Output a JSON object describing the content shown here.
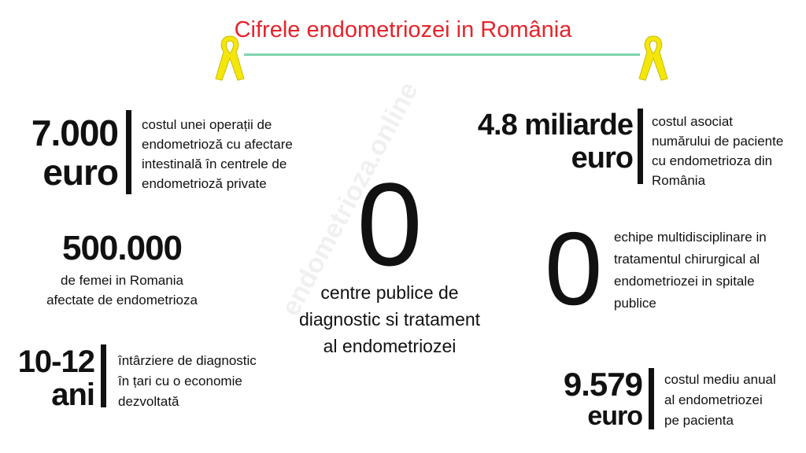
{
  "header": {
    "title": "Cifrele endometriozei in România",
    "accent_line_color": "#7fd3ad",
    "ribbon_icon": "awareness-ribbon-icon",
    "ribbon_color": "#f5e60a"
  },
  "stats": {
    "operation_cost": {
      "value_line1": "7.000",
      "value_line2": "euro",
      "description": [
        "costul unei operații de",
        "endometrioză cu afectare",
        "intestinală în centrele de",
        "endometrioză private"
      ]
    },
    "national_cost": {
      "value_line1": "4.8 miliarde",
      "value_line2": "euro",
      "description": [
        "costul asociat",
        "numărului de paciente",
        "cu endometrioza din",
        "România"
      ]
    },
    "women_affected": {
      "value": "500.000",
      "description": [
        "de femei in Romania",
        "afectate de endometrioza"
      ]
    },
    "public_centers": {
      "value": "0",
      "description": [
        "centre publice de",
        "diagnostic si tratament",
        "al endometriozei"
      ]
    },
    "teams": {
      "value": "0",
      "description": [
        "echipe multidisciplinare in",
        "tratamentul chirurgical al",
        "endometriozei in spitale",
        "publice"
      ]
    },
    "diagnosis_delay": {
      "value_line1": "10-12",
      "value_line2": "ani",
      "description": [
        "întârziere de diagnostic",
        "în țari cu o economie",
        "dezvoltată"
      ]
    },
    "annual_cost": {
      "value_line1": "9.579",
      "value_line2": "euro",
      "description": [
        "costul mediu anual",
        "al endometriozei",
        "pe pacienta"
      ]
    }
  },
  "watermark": "endometrioza.online"
}
